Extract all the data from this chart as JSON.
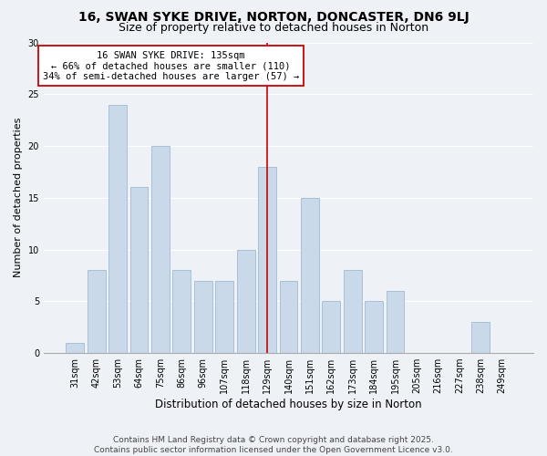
{
  "title": "16, SWAN SYKE DRIVE, NORTON, DONCASTER, DN6 9LJ",
  "subtitle": "Size of property relative to detached houses in Norton",
  "xlabel": "Distribution of detached houses by size in Norton",
  "ylabel": "Number of detached properties",
  "categories": [
    "31sqm",
    "42sqm",
    "53sqm",
    "64sqm",
    "75sqm",
    "86sqm",
    "96sqm",
    "107sqm",
    "118sqm",
    "129sqm",
    "140sqm",
    "151sqm",
    "162sqm",
    "173sqm",
    "184sqm",
    "195sqm",
    "205sqm",
    "216sqm",
    "227sqm",
    "238sqm",
    "249sqm"
  ],
  "values": [
    1,
    8,
    24,
    16,
    20,
    8,
    7,
    7,
    10,
    18,
    7,
    15,
    5,
    8,
    5,
    6,
    0,
    0,
    0,
    3,
    0
  ],
  "bar_color": "#c9d9ea",
  "bar_edgecolor": "#a8c0d6",
  "vline_index": 9.5,
  "vline_color": "#cc0000",
  "annotation_box_text": "16 SWAN SYKE DRIVE: 135sqm\n← 66% of detached houses are smaller (110)\n34% of semi-detached houses are larger (57) →",
  "annotation_box_facecolor": "#ffffff",
  "annotation_box_edgecolor": "#cc0000",
  "ylim": [
    0,
    30
  ],
  "yticks": [
    0,
    5,
    10,
    15,
    20,
    25,
    30
  ],
  "footer1": "Contains HM Land Registry data © Crown copyright and database right 2025.",
  "footer2": "Contains public sector information licensed under the Open Government Licence v3.0.",
  "background_color": "#eef2f7",
  "grid_color": "#ffffff",
  "title_fontsize": 10,
  "subtitle_fontsize": 9,
  "xlabel_fontsize": 8.5,
  "ylabel_fontsize": 8,
  "tick_fontsize": 7,
  "annotation_fontsize": 7.5,
  "footer_fontsize": 6.5
}
